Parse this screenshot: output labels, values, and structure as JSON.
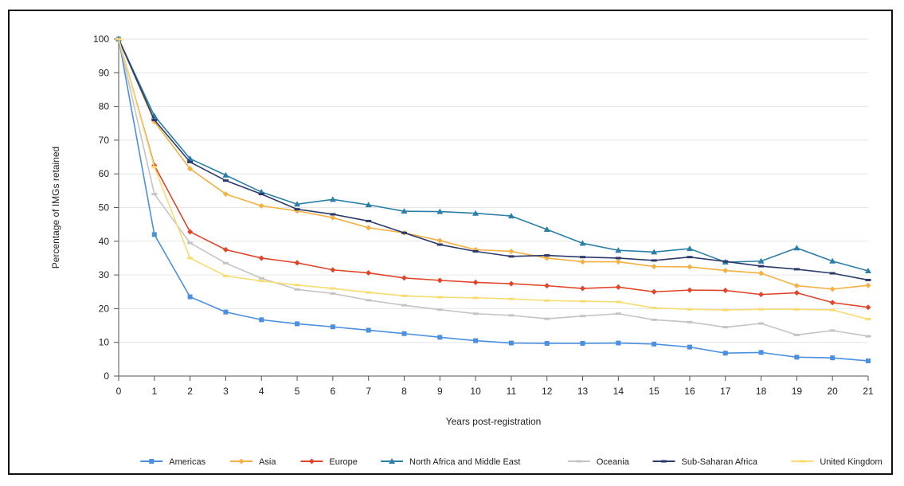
{
  "chart_data": {
    "type": "line",
    "title": "",
    "xlabel": "Years post-registration",
    "ylabel": "Percentage of IMGs retained",
    "x": [
      0,
      1,
      2,
      3,
      4,
      5,
      6,
      7,
      8,
      9,
      10,
      11,
      12,
      13,
      14,
      15,
      16,
      17,
      18,
      19,
      20,
      21
    ],
    "xlim": [
      0,
      21
    ],
    "ylim": [
      0,
      100
    ],
    "yticks": [
      0,
      10,
      20,
      30,
      40,
      50,
      60,
      70,
      80,
      90,
      100
    ],
    "grid": "horizontal",
    "legend_position": "bottom",
    "series": [
      {
        "name": "Americas",
        "color": "#4a8fe0",
        "marker": "square",
        "values": [
          100,
          42,
          23.5,
          19,
          16.7,
          15.5,
          14.6,
          13.6,
          12.6,
          11.5,
          10.5,
          9.8,
          9.7,
          9.7,
          9.8,
          9.5,
          8.6,
          6.8,
          7,
          5.6,
          5.4,
          4.5
        ]
      },
      {
        "name": "Asia",
        "color": "#f5b041",
        "marker": "diamond",
        "values": [
          100,
          75.5,
          61.5,
          54,
          50.5,
          49,
          47,
          44,
          42.5,
          40.2,
          37.5,
          37,
          35,
          33.9,
          33.9,
          32.5,
          32.4,
          31.3,
          30.5,
          26.8,
          25.8,
          26.9
        ]
      },
      {
        "name": "Europe",
        "color": "#e0452a",
        "marker": "diamond",
        "values": [
          100,
          62.5,
          42.8,
          37.5,
          35,
          33.6,
          31.5,
          30.6,
          29.1,
          28.4,
          27.8,
          27.4,
          26.8,
          26,
          26.4,
          25,
          25.5,
          25.4,
          24.2,
          24.7,
          21.8,
          20.4
        ]
      },
      {
        "name": "North Africa and Middle East",
        "color": "#2a7fa6",
        "marker": "triangle",
        "values": [
          100,
          77.2,
          64.5,
          59.6,
          54.6,
          51,
          52.4,
          50.8,
          48.9,
          48.8,
          48.3,
          47.5,
          43.5,
          39.4,
          37.3,
          36.8,
          37.8,
          33.8,
          34.1,
          38,
          34.1,
          31.2
        ]
      },
      {
        "name": "Oceania",
        "color": "#c4c4c4",
        "marker": "dash",
        "values": [
          100,
          54,
          39.5,
          33.5,
          29,
          25.7,
          24.5,
          22.5,
          21,
          19.7,
          18.5,
          18,
          17,
          17.8,
          18.5,
          16.7,
          16,
          14.5,
          15.6,
          12.2,
          13.5,
          11.8
        ]
      },
      {
        "name": "Sub-Saharan Africa",
        "color": "#2b3a6b",
        "marker": "dash",
        "values": [
          100,
          76,
          63.5,
          58,
          54,
          49.5,
          48,
          46,
          42.5,
          39,
          37,
          35.5,
          35.8,
          35.3,
          35,
          34.3,
          35.3,
          34,
          32.6,
          31.7,
          30.5,
          28.5
        ]
      },
      {
        "name": "United Kingdom",
        "color": "#f7dc6f",
        "marker": "dash",
        "values": [
          100,
          62,
          35,
          29.7,
          28.2,
          27,
          26,
          24.8,
          23.8,
          23.4,
          23.2,
          22.9,
          22.4,
          22.2,
          22,
          20.2,
          19.8,
          19.6,
          19.8,
          19.8,
          19.6,
          16.9
        ]
      }
    ]
  }
}
